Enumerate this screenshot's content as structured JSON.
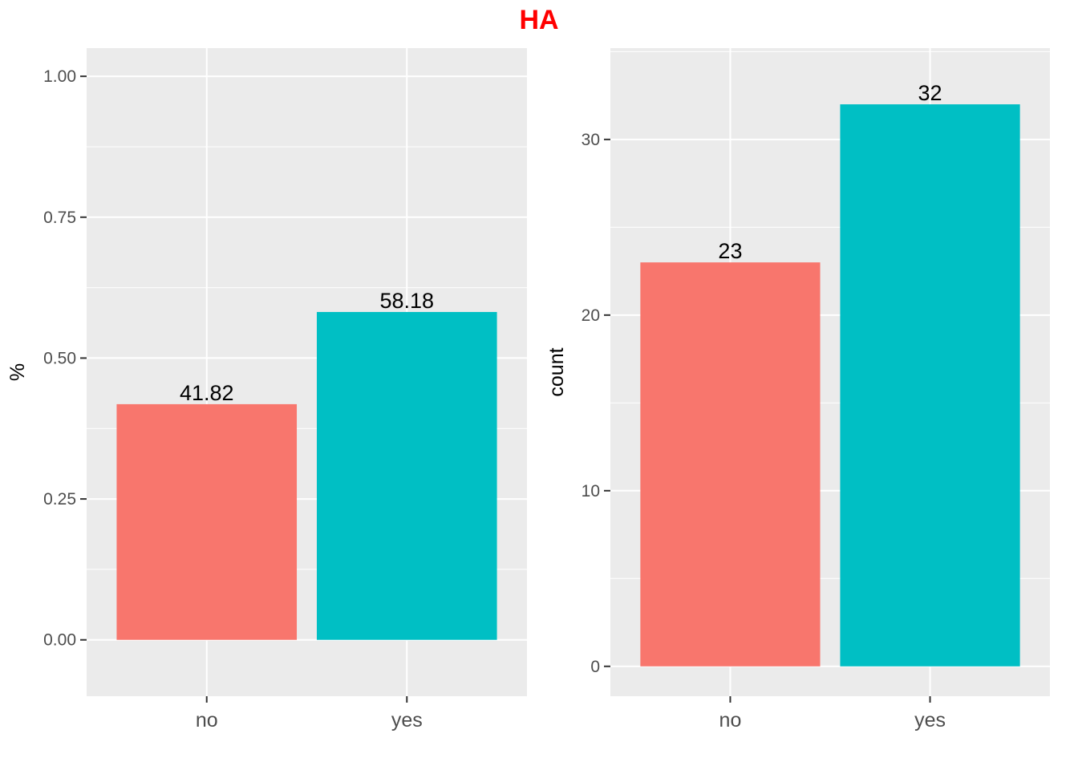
{
  "title": "HA",
  "colors": {
    "title": "#ff0000",
    "panel": "#ebebeb",
    "grid": "#ffffff",
    "no": "#f8766d",
    "yes": "#00bfc4"
  },
  "chart_data": [
    {
      "type": "bar",
      "categories": [
        "no",
        "yes"
      ],
      "values": [
        0.4182,
        0.5818
      ],
      "data_labels": [
        "41.82",
        "58.18"
      ],
      "xlabel": "",
      "ylabel": "%",
      "ylim": [
        -0.1,
        1.05
      ],
      "yticks": [
        0,
        0.25,
        0.5,
        0.75,
        1.0
      ],
      "ytick_labels": [
        "0.00",
        "0.25",
        "0.50",
        "0.75",
        "1.00"
      ],
      "grid": true
    },
    {
      "type": "bar",
      "categories": [
        "no",
        "yes"
      ],
      "values": [
        23,
        32
      ],
      "data_labels": [
        "23",
        "32"
      ],
      "xlabel": "",
      "ylabel": "count",
      "ylim": [
        -1.7,
        35.2
      ],
      "yticks": [
        0,
        10,
        20,
        30
      ],
      "ytick_labels": [
        "0",
        "10",
        "20",
        "30"
      ],
      "grid": true
    }
  ]
}
